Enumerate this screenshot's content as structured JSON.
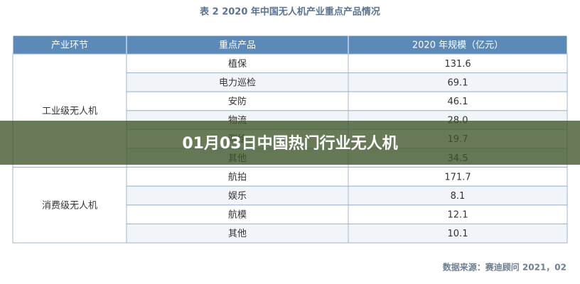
{
  "header": {
    "title": "表 2  2020 年中国无人机产业重点产品情况"
  },
  "table": {
    "columns": [
      "产业环节",
      "重点产品",
      "2020 年规模（亿元）"
    ],
    "groups": [
      {
        "name": "工业级无人机",
        "rows": [
          [
            "植保",
            "131.6"
          ],
          [
            "电力巡检",
            "69.1"
          ],
          [
            "安防",
            "46.1"
          ],
          [
            "物流",
            "28.0"
          ],
          [
            "测绘",
            "19.7"
          ],
          [
            "其他",
            "34.5"
          ]
        ]
      },
      {
        "name": "消费级无人机",
        "rows": [
          [
            "航拍",
            "171.7"
          ],
          [
            "娱乐",
            "8.1"
          ],
          [
            "航模",
            "12.1"
          ],
          [
            "其他",
            "10.1"
          ]
        ]
      }
    ]
  },
  "source": "数据来源：赛迪顾问    2021，02",
  "banner": "01月03日中国热门行业无人机"
}
